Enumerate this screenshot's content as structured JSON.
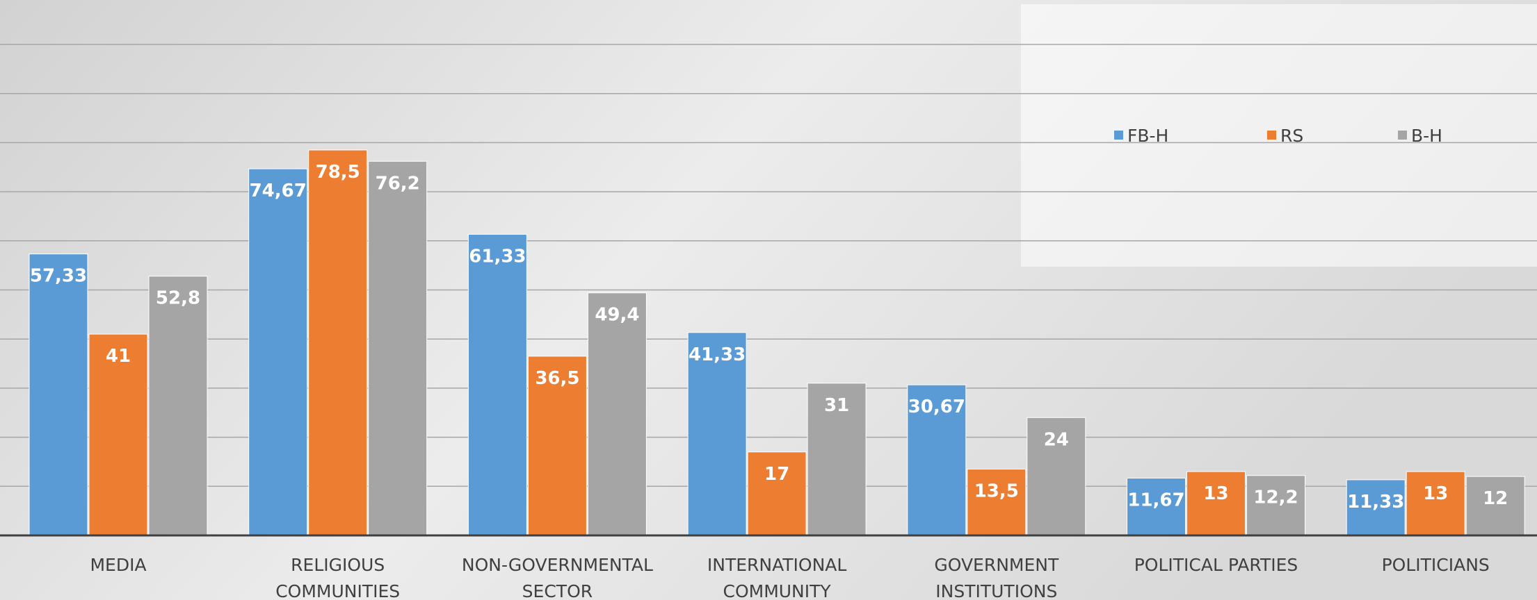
{
  "chart_data": {
    "type": "bar",
    "categories": [
      [
        "MEDIA"
      ],
      [
        "RELIGIOUS",
        "COMMUNITIES"
      ],
      [
        "NON-GOVERNMENTAL",
        "SECTOR"
      ],
      [
        "INTERNATIONAL",
        "COMMUNITY"
      ],
      [
        "GOVERNMENT",
        "INSTITUTIONS"
      ],
      [
        "POLITICAL PARTIES"
      ],
      [
        "POLITICIANS"
      ]
    ],
    "series": [
      {
        "name": "FB-H",
        "color": "#5b9bd5",
        "values": [
          57.33,
          74.67,
          61.33,
          41.33,
          30.67,
          11.67,
          11.33
        ],
        "labels": [
          "57,33",
          "74,67",
          "61,33",
          "41,33",
          "30,67",
          "11,67",
          "11,33"
        ]
      },
      {
        "name": "RS",
        "color": "#ed7d31",
        "values": [
          41,
          78.5,
          36.5,
          17,
          13.5,
          13,
          13
        ],
        "labels": [
          "41",
          "78,5",
          "36,5",
          "17",
          "13,5",
          "13",
          "13"
        ]
      },
      {
        "name": "B-H",
        "color": "#a5a5a5",
        "values": [
          52.8,
          76.2,
          49.4,
          31,
          24,
          12.2,
          12
        ],
        "labels": [
          "52,8",
          "76,2",
          "49,4",
          "31",
          "24",
          "12,2",
          "12"
        ]
      }
    ],
    "ylim": [
      0,
      100
    ],
    "grid": true,
    "legend": "top-right"
  }
}
